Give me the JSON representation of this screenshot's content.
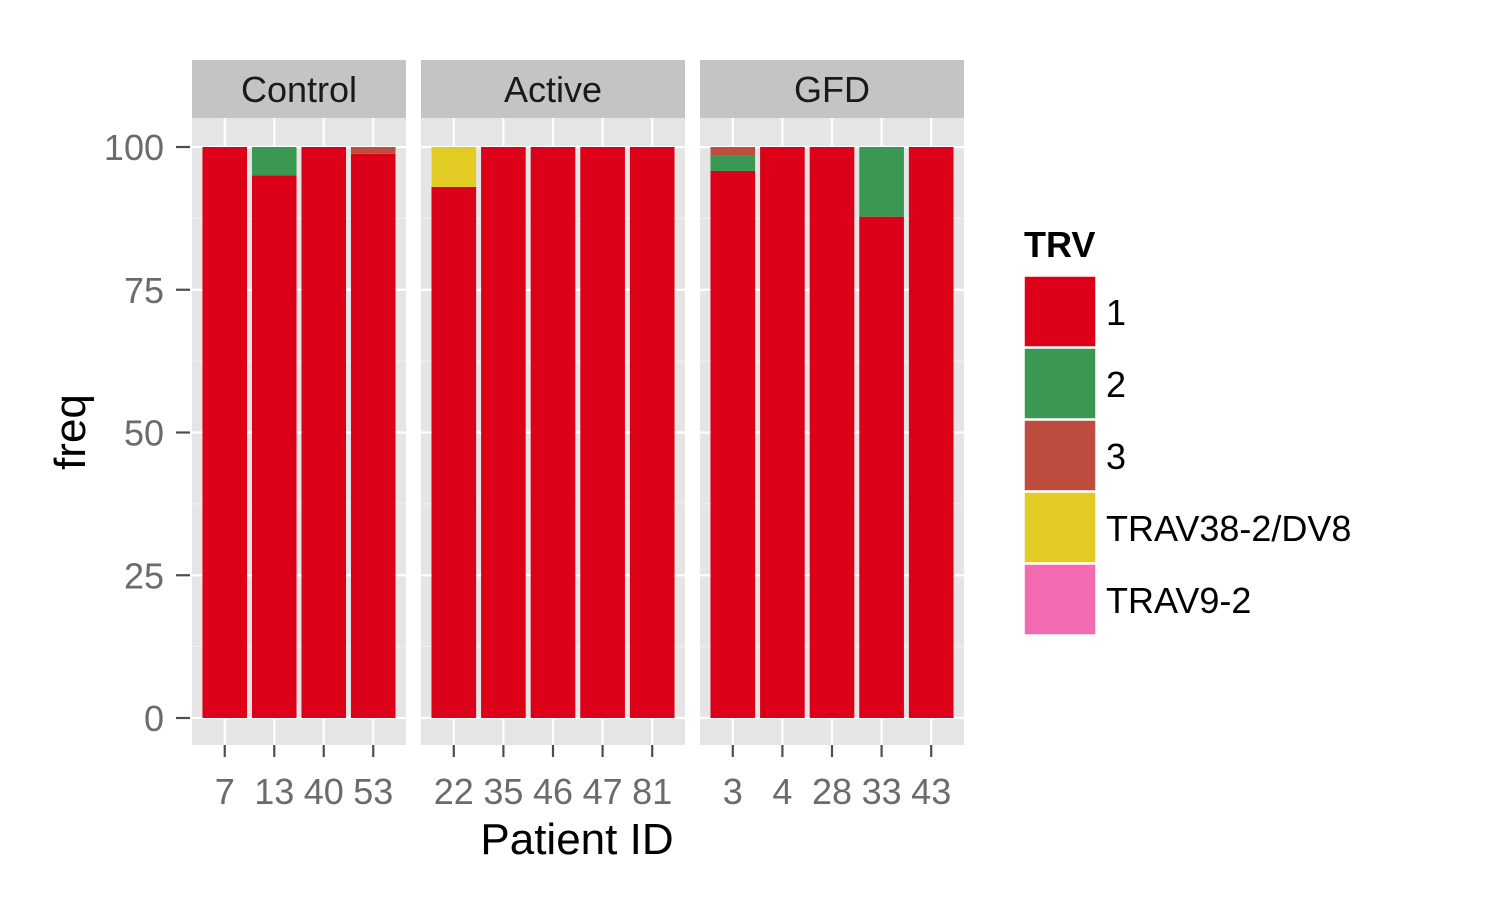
{
  "chart_data": {
    "type": "bar",
    "stacked": true,
    "xlabel": "Patient ID",
    "ylabel": "freq",
    "ylim": [
      0,
      100
    ],
    "yticks": [
      0,
      25,
      50,
      75,
      100
    ],
    "legend": {
      "title": "TRV",
      "position": "right"
    },
    "series_names": [
      "1",
      "2",
      "3",
      "TRAV38-2/DV8",
      "TRAV9-2"
    ],
    "colors": {
      "1": "#DC0019",
      "2": "#3A9852",
      "3": "#BE4D40",
      "TRAV38-2/DV8": "#E2CC24",
      "TRAV9-2": "#F26AB0"
    },
    "panel_background": "#E5E5E5",
    "strip_background": "#C4C4C4",
    "facets": [
      {
        "name": "Control",
        "categories": [
          "7",
          "13",
          "40",
          "53"
        ],
        "series": [
          {
            "name": "1",
            "values": [
              100,
              95,
              100,
              98.8
            ]
          },
          {
            "name": "2",
            "values": [
              0,
              5,
              0,
              0
            ]
          },
          {
            "name": "3",
            "values": [
              0,
              0,
              0,
              1.2
            ]
          },
          {
            "name": "TRAV38-2/DV8",
            "values": [
              0,
              0,
              0,
              0
            ]
          },
          {
            "name": "TRAV9-2",
            "values": [
              0,
              0,
              0,
              0
            ]
          }
        ]
      },
      {
        "name": "Active",
        "categories": [
          "22",
          "35",
          "46",
          "47",
          "81"
        ],
        "series": [
          {
            "name": "1",
            "values": [
              93,
              100,
              100,
              100,
              100
            ]
          },
          {
            "name": "2",
            "values": [
              0,
              0,
              0,
              0,
              0
            ]
          },
          {
            "name": "3",
            "values": [
              0,
              0,
              0,
              0,
              0
            ]
          },
          {
            "name": "TRAV38-2/DV8",
            "values": [
              7,
              0,
              0,
              0,
              0
            ]
          },
          {
            "name": "TRAV9-2",
            "values": [
              0,
              0,
              0,
              0,
              0
            ]
          }
        ]
      },
      {
        "name": "GFD",
        "categories": [
          "3",
          "4",
          "28",
          "33",
          "43"
        ],
        "series": [
          {
            "name": "1",
            "values": [
              95.8,
              100,
              100,
              87.8,
              100
            ]
          },
          {
            "name": "2",
            "values": [
              2.7,
              0,
              0,
              12.2,
              0
            ]
          },
          {
            "name": "3",
            "values": [
              1.5,
              0,
              0,
              0,
              0
            ]
          },
          {
            "name": "TRAV38-2/DV8",
            "values": [
              0,
              0,
              0,
              0,
              0
            ]
          },
          {
            "name": "TRAV9-2",
            "values": [
              0,
              0,
              0,
              0,
              0
            ]
          }
        ]
      }
    ]
  }
}
